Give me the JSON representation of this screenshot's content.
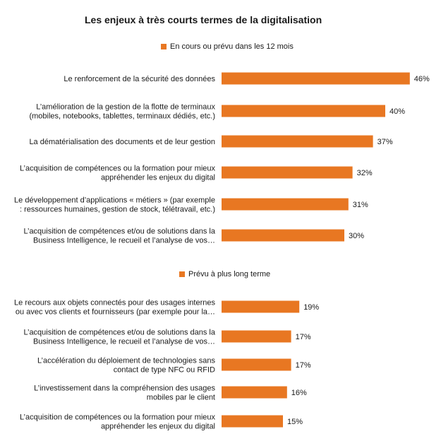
{
  "chart_data": {
    "type": "bar",
    "orientation": "horizontal",
    "title": "Les enjeux à très courts termes de la digitalisation",
    "bar_color": "#e87722",
    "panels": [
      {
        "legend": "En cours ou prévu dans les 12 mois",
        "categories": [
          [
            "Le renforcement de la sécurité des données"
          ],
          [
            "L’amélioration de la gestion de la flotte de terminaux",
            "(mobiles, notebooks, tablettes, terminaux dédiés, etc.)"
          ],
          [
            "La dématérialisation des documents et de leur gestion"
          ],
          [
            "L’acquisition de compétences ou la formation pour mieux",
            "appréhender les enjeux du digital"
          ],
          [
            "Le développement d’applications « métiers » (par exemple",
            ": ressources humaines, gestion de stock, télétravail, etc.)"
          ],
          [
            "L’acquisition de compétences et/ou de solutions dans la",
            "Business Intelligence, le recueil et l’analyse de vos…"
          ]
        ],
        "values": [
          46,
          40,
          37,
          32,
          31,
          30
        ],
        "labels": [
          "46%",
          "40%",
          "37%",
          "32%",
          "31%",
          "30%"
        ]
      },
      {
        "legend": "Prévu à plus long terme",
        "categories": [
          [
            "Le recours aux objets connectés pour des usages internes",
            "ou avec vos clients et fournisseurs (par exemple pour la…"
          ],
          [
            "L’acquisition de compétences et/ou de solutions dans la",
            "Business Intelligence, le recueil et l’analyse de vos…"
          ],
          [
            "L’accélération du déploiement de technologies sans",
            "contact de type NFC ou RFID"
          ],
          [
            "L’investissement dans la compréhension des usages",
            "mobiles par le client"
          ],
          [
            "L’acquisition de compétences ou la formation pour mieux",
            "appréhender les enjeux du digital"
          ]
        ],
        "values": [
          19,
          17,
          17,
          16,
          15
        ],
        "labels": [
          "19%",
          "17%",
          "17%",
          "16%",
          "15%"
        ]
      }
    ]
  }
}
